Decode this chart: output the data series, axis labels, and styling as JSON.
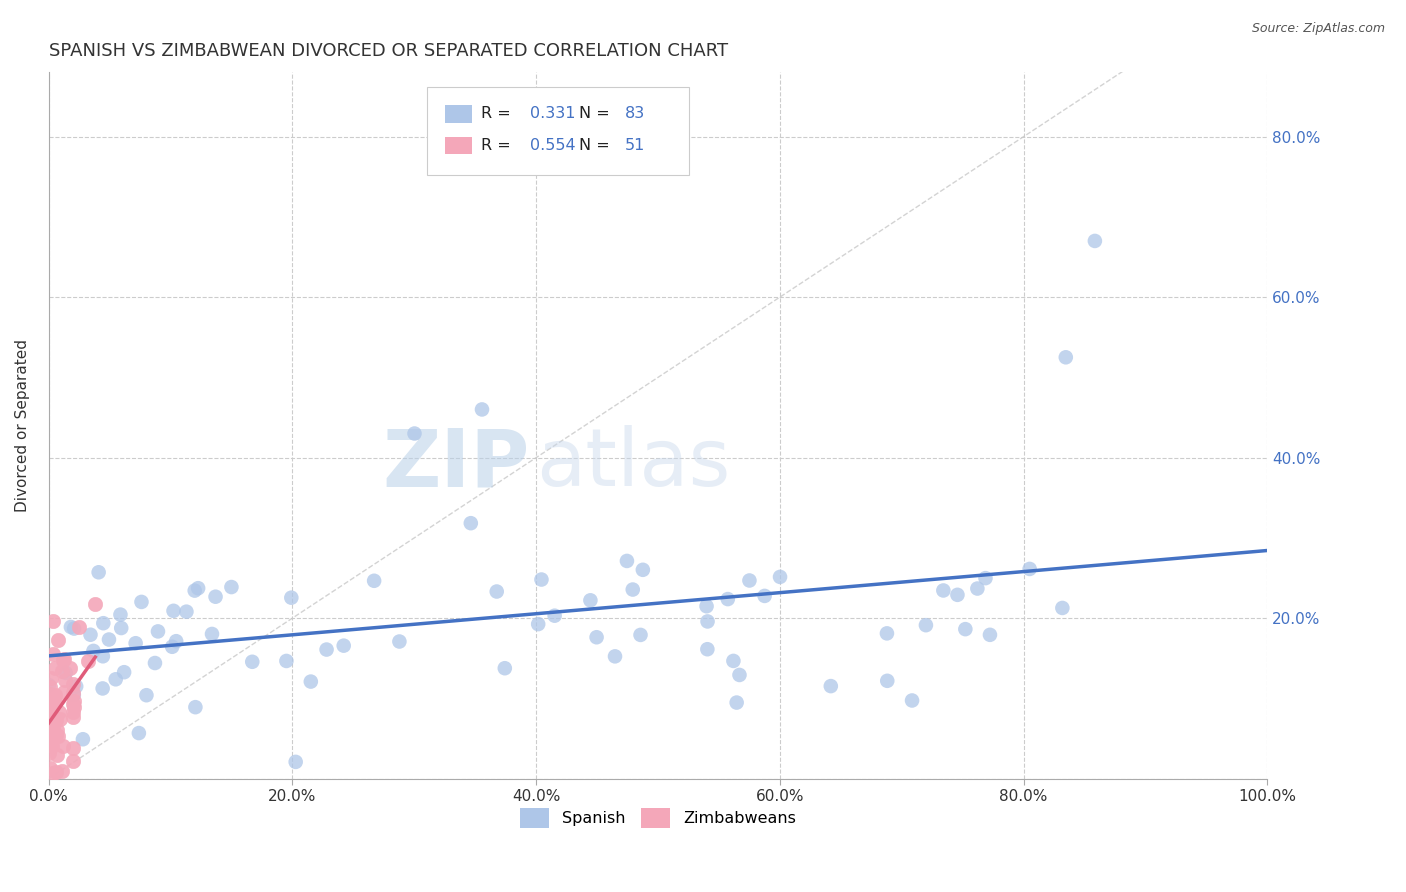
{
  "title": "SPANISH VS ZIMBABWEAN DIVORCED OR SEPARATED CORRELATION CHART",
  "source": "Source: ZipAtlas.com",
  "ylabel": "Divorced or Separated",
  "xlim": [
    0.0,
    1.0
  ],
  "ylim": [
    0.0,
    0.88
  ],
  "xticks": [
    0.0,
    0.2,
    0.4,
    0.6,
    0.8,
    1.0
  ],
  "xticklabels": [
    "0.0%",
    "20.0%",
    "40.0%",
    "60.0%",
    "80.0%",
    "100.0%"
  ],
  "yticks": [
    0.0,
    0.2,
    0.4,
    0.6,
    0.8
  ],
  "yticklabels": [
    "",
    "20.0%",
    "40.0%",
    "60.0%",
    "80.0%"
  ],
  "yticks_right": [
    0.2,
    0.4,
    0.6,
    0.8
  ],
  "yticklabels_right": [
    "20.0%",
    "40.0%",
    "60.0%",
    "80.0%"
  ],
  "spanish_scatter_color": "#aec6e8",
  "zimbabwean_scatter_color": "#f4a7b9",
  "spanish_line_color": "#4472c4",
  "zimbabwean_line_color": "#e05c7a",
  "diagonal_color": "#c8c8c8",
  "background_color": "#ffffff",
  "grid_color": "#cccccc",
  "title_fontsize": 13,
  "axis_fontsize": 11,
  "tick_fontsize": 11,
  "legend_R_color": "#4472c4",
  "watermark_color": "#dce8f5"
}
